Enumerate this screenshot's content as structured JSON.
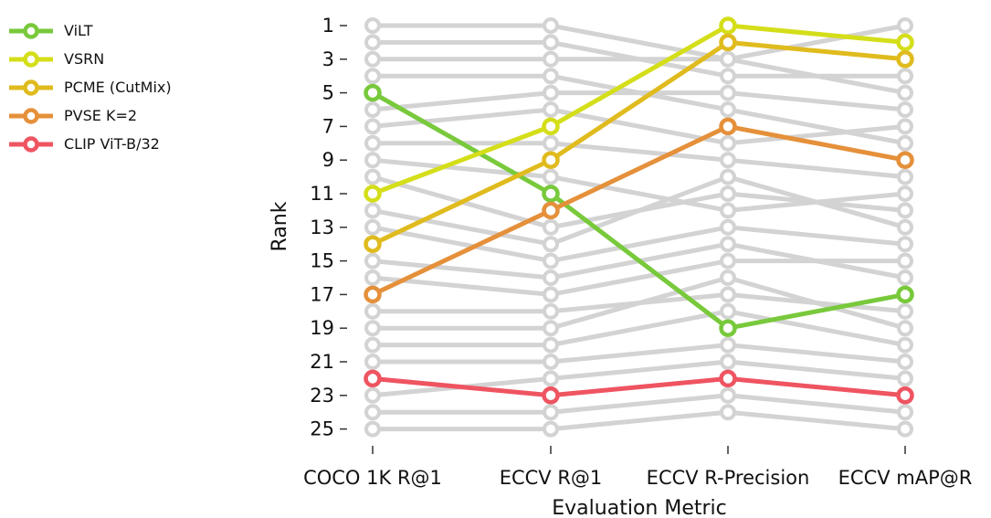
{
  "chart_data": {
    "type": "line",
    "title": "",
    "xlabel": "Evaluation Metric",
    "ylabel": "Rank",
    "categories": [
      "COCO 1K R@1",
      "ECCV R@1",
      "ECCV R-Precision",
      "ECCV mAP@R"
    ],
    "y_ticks": [
      1,
      3,
      5,
      7,
      9,
      11,
      13,
      15,
      17,
      19,
      21,
      23,
      25
    ],
    "ylim": [
      1,
      25
    ],
    "y_inverted": true,
    "grid": false,
    "legend_position": "top-left (outside plot)",
    "background_series_color": "#d3d3d3",
    "highlighted_series": [
      {
        "name": "ViLT",
        "color": "#78c93b",
        "values": [
          5,
          11,
          19,
          17
        ]
      },
      {
        "name": "VSRN",
        "color": "#d4de19",
        "values": [
          11,
          7,
          1,
          2
        ]
      },
      {
        "name": "PCME (CutMix)",
        "color": "#e0bb1e",
        "values": [
          14,
          9,
          2,
          3
        ]
      },
      {
        "name": "PVSE K=2",
        "color": "#e5903a",
        "values": [
          17,
          12,
          7,
          9
        ]
      },
      {
        "name": "CLIP ViT-B/32",
        "color": "#ef5461",
        "values": [
          22,
          23,
          22,
          23
        ]
      }
    ],
    "background_series": [
      [
        1,
        1,
        3,
        1
      ],
      [
        2,
        2,
        4,
        4
      ],
      [
        3,
        3,
        3,
        5
      ],
      [
        4,
        4,
        6,
        8
      ],
      [
        6,
        5,
        5,
        6
      ],
      [
        7,
        6,
        8,
        7
      ],
      [
        8,
        8,
        9,
        10
      ],
      [
        9,
        10,
        12,
        11
      ],
      [
        10,
        13,
        11,
        12
      ],
      [
        12,
        14,
        10,
        13
      ],
      [
        13,
        15,
        13,
        14
      ],
      [
        15,
        16,
        14,
        16
      ],
      [
        16,
        17,
        15,
        15
      ],
      [
        18,
        18,
        17,
        18
      ],
      [
        19,
        19,
        16,
        19
      ],
      [
        20,
        20,
        18,
        20
      ],
      [
        21,
        21,
        20,
        21
      ],
      [
        23,
        22,
        21,
        22
      ],
      [
        24,
        24,
        23,
        24
      ],
      [
        25,
        25,
        24,
        25
      ]
    ]
  }
}
